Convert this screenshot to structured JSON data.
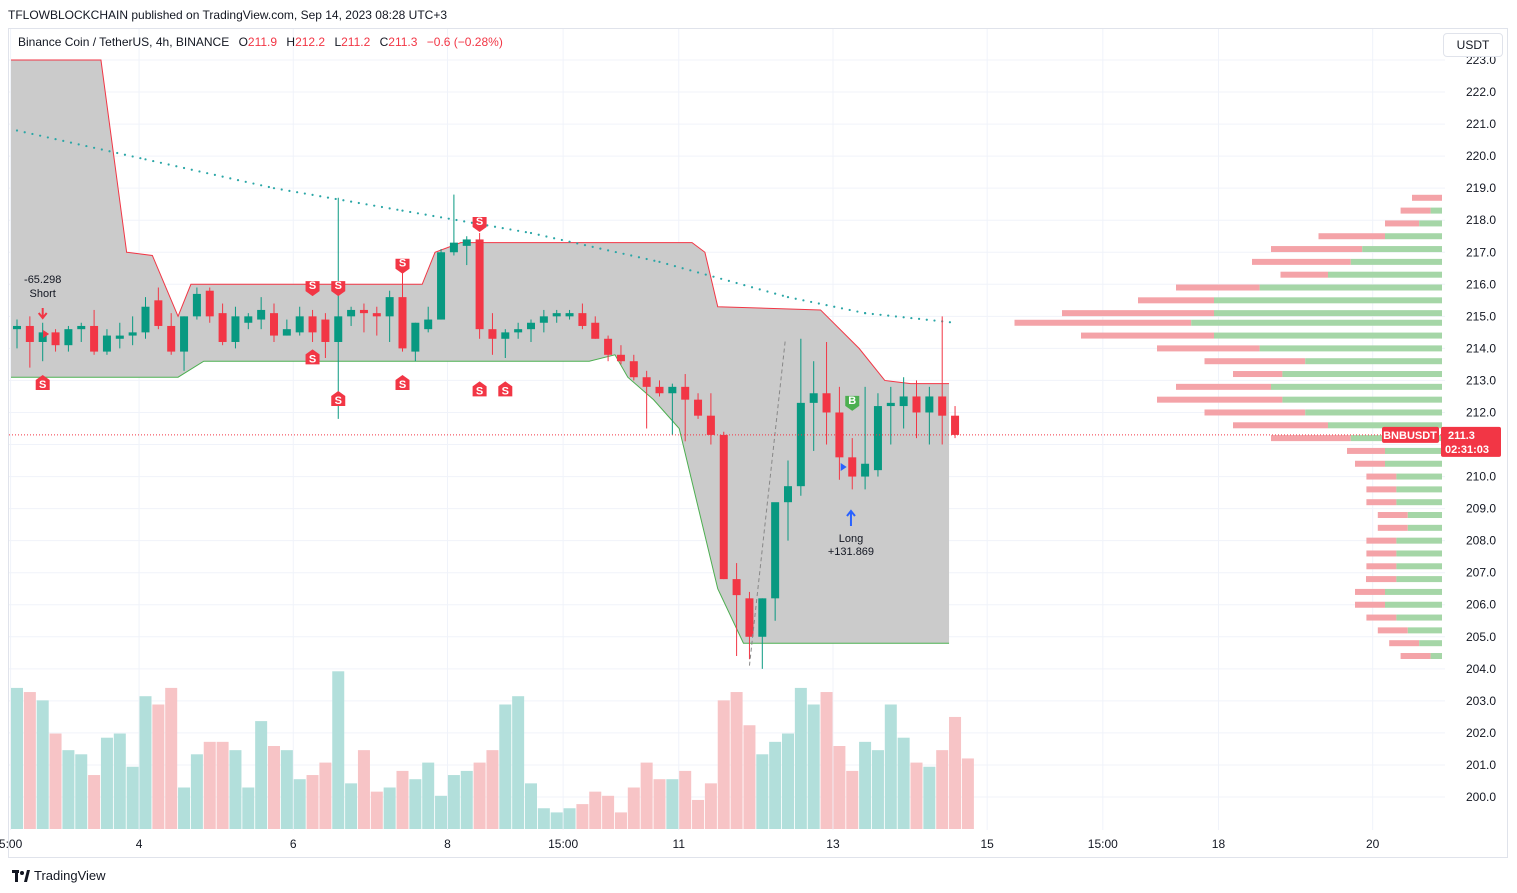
{
  "header": {
    "publisher": "TFLOWBLOCKCHAIN published on TradingView.com, Sep 14, 2023 08:28 UTC+3"
  },
  "legend": {
    "symbol": "Binance Coin / TetherUS, 4h, BINANCE",
    "o_label": "O",
    "o_value": "211.9",
    "h_label": "H",
    "h_value": "212.2",
    "l_label": "L",
    "l_value": "211.2",
    "c_label": "C",
    "c_value": "211.3",
    "change": "−0.6 (−0.28%)"
  },
  "currency": "USDT",
  "price_tag": {
    "symbol": "BNBUSDT",
    "price": "211.3",
    "countdown": "02:31:03"
  },
  "trades": {
    "short_value": "-65.298",
    "short_label": "Short",
    "long_label": "Long",
    "long_value": "+131.869"
  },
  "signals": {
    "sell": "S",
    "buy": "B"
  },
  "footer": {
    "brand": "TradingView"
  },
  "colors": {
    "up": "#089981",
    "down": "#f23645",
    "band": "#c8c8c8",
    "vol_up": "#b2dfdb",
    "vol_down": "#f7c4c6",
    "dots": "#2aa6a6"
  },
  "chart_data": {
    "type": "candlestick",
    "timeframe": "4h",
    "y_ticks": [
      200.0,
      201.0,
      202.0,
      203.0,
      204.0,
      205.0,
      206.0,
      207.0,
      208.0,
      209.0,
      210.0,
      211.0,
      212.0,
      213.0,
      214.0,
      215.0,
      216.0,
      217.0,
      218.0,
      219.0,
      220.0,
      221.0,
      222.0,
      223.0
    ],
    "y_tick_labels": [
      "200.0",
      "201.0",
      "202.0",
      "203.0",
      "204.0",
      "205.0",
      "206.0",
      "207.0",
      "208.0",
      "209.0",
      "210.0",
      "211.0",
      "212.0",
      "213.0",
      "214.0",
      "215.0",
      "216.0",
      "217.0",
      "218.0",
      "219.0",
      "220.0",
      "221.0",
      "222.0",
      "223.0"
    ],
    "ylim": [
      199.0,
      223.2
    ],
    "x_ticks": [
      {
        "i": -0.5,
        "label": "5:00"
      },
      {
        "i": 9.5,
        "label": "4"
      },
      {
        "i": 21.5,
        "label": "6"
      },
      {
        "i": 33.5,
        "label": "8"
      },
      {
        "i": 42.5,
        "label": "15:00"
      },
      {
        "i": 51.5,
        "label": "11"
      },
      {
        "i": 63.5,
        "label": "13"
      },
      {
        "i": 75.5,
        "label": "15"
      },
      {
        "i": 84.5,
        "label": "15:00"
      },
      {
        "i": 93.5,
        "label": "18"
      },
      {
        "i": 105.5,
        "label": "20"
      }
    ],
    "candles": [
      [
        214.6,
        214.9,
        214.0,
        214.7
      ],
      [
        214.7,
        215.0,
        213.4,
        214.2
      ],
      [
        214.2,
        214.8,
        213.6,
        214.5
      ],
      [
        214.5,
        214.6,
        213.9,
        214.1
      ],
      [
        214.1,
        214.7,
        213.9,
        214.6
      ],
      [
        214.6,
        214.8,
        214.2,
        214.7
      ],
      [
        214.7,
        215.2,
        213.8,
        213.9
      ],
      [
        213.9,
        214.6,
        213.8,
        214.4
      ],
      [
        214.3,
        214.8,
        214.0,
        214.4
      ],
      [
        214.4,
        215.0,
        214.1,
        214.5
      ],
      [
        214.5,
        215.6,
        214.3,
        215.3
      ],
      [
        215.5,
        215.9,
        214.6,
        214.7
      ],
      [
        214.7,
        215.1,
        213.8,
        213.9
      ],
      [
        213.9,
        215.0,
        213.3,
        215.0
      ],
      [
        215.0,
        215.9,
        214.9,
        215.7
      ],
      [
        215.8,
        215.9,
        214.8,
        215.0
      ],
      [
        215.1,
        215.4,
        214.1,
        214.2
      ],
      [
        214.2,
        215.3,
        214.0,
        215.0
      ],
      [
        214.8,
        215.1,
        214.6,
        215.0
      ],
      [
        214.9,
        215.6,
        214.6,
        215.2
      ],
      [
        215.1,
        215.4,
        214.2,
        214.4
      ],
      [
        214.4,
        214.9,
        214.4,
        214.6
      ],
      [
        214.5,
        215.3,
        214.4,
        215.0
      ],
      [
        215.0,
        215.2,
        214.2,
        214.5
      ],
      [
        214.9,
        215.1,
        213.7,
        214.2
      ],
      [
        214.2,
        218.7,
        211.8,
        215.0
      ],
      [
        215.0,
        215.3,
        214.7,
        215.2
      ],
      [
        215.2,
        215.4,
        214.5,
        215.1
      ],
      [
        215.1,
        215.3,
        214.4,
        215.0
      ],
      [
        215.0,
        215.8,
        214.2,
        215.6
      ],
      [
        215.6,
        216.4,
        213.9,
        214.0
      ],
      [
        213.9,
        214.8,
        213.6,
        214.8
      ],
      [
        214.6,
        215.3,
        214.5,
        214.9
      ],
      [
        214.9,
        217.1,
        214.9,
        217.0
      ],
      [
        217.0,
        218.8,
        216.9,
        217.3
      ],
      [
        217.2,
        217.5,
        216.6,
        217.4
      ],
      [
        217.4,
        217.6,
        214.3,
        214.6
      ],
      [
        214.6,
        215.1,
        213.8,
        214.3
      ],
      [
        214.3,
        214.6,
        213.7,
        214.5
      ],
      [
        214.5,
        214.8,
        214.3,
        214.6
      ],
      [
        214.6,
        214.9,
        214.2,
        214.8
      ],
      [
        214.8,
        215.2,
        214.5,
        215.0
      ],
      [
        215.0,
        215.2,
        214.8,
        215.1
      ],
      [
        215.0,
        215.2,
        214.9,
        215.1
      ],
      [
        215.1,
        215.4,
        214.6,
        214.7
      ],
      [
        214.8,
        215.0,
        214.3,
        214.3
      ],
      [
        214.3,
        214.4,
        213.6,
        213.8
      ],
      [
        213.8,
        214.1,
        213.5,
        213.6
      ],
      [
        213.6,
        213.8,
        213.0,
        213.1
      ],
      [
        213.1,
        213.3,
        211.5,
        212.8
      ],
      [
        212.8,
        213.0,
        212.5,
        212.6
      ],
      [
        212.6,
        212.9,
        211.3,
        212.8
      ],
      [
        212.8,
        213.2,
        211.1,
        212.4
      ],
      [
        212.4,
        212.6,
        211.8,
        211.9
      ],
      [
        211.9,
        212.6,
        211.0,
        211.3
      ],
      [
        211.3,
        211.4,
        206.8,
        206.8
      ],
      [
        206.8,
        207.3,
        204.4,
        206.3
      ],
      [
        206.2,
        206.4,
        204.3,
        205.0
      ],
      [
        205.0,
        206.2,
        204.0,
        206.2
      ],
      [
        206.2,
        209.0,
        205.5,
        209.2
      ],
      [
        209.2,
        210.5,
        208.0,
        209.7
      ],
      [
        209.7,
        214.3,
        209.4,
        212.3
      ],
      [
        212.3,
        213.6,
        210.8,
        212.6
      ],
      [
        212.6,
        214.2,
        211.0,
        212.0
      ],
      [
        212.0,
        212.8,
        209.9,
        210.6
      ],
      [
        210.6,
        211.2,
        209.6,
        210.0
      ],
      [
        210.0,
        212.8,
        209.6,
        210.4
      ],
      [
        210.2,
        212.6,
        210.0,
        212.2
      ],
      [
        212.2,
        212.8,
        211.0,
        212.3
      ],
      [
        212.2,
        213.1,
        211.5,
        212.5
      ],
      [
        212.5,
        213.0,
        211.2,
        212.0
      ],
      [
        212.0,
        212.8,
        211.0,
        212.5
      ],
      [
        212.5,
        215.0,
        211.0,
        211.9
      ],
      [
        211.9,
        212.2,
        211.2,
        211.3
      ]
    ],
    "volumes": [
      34,
      33,
      31,
      23,
      19,
      18,
      13,
      22,
      23,
      15,
      32,
      30,
      34,
      10,
      18,
      21,
      21,
      19,
      10,
      26,
      20,
      19,
      12,
      13,
      16,
      38,
      11,
      19,
      9,
      10,
      14,
      12,
      16,
      8,
      13,
      14,
      16,
      19,
      30,
      32,
      11,
      5,
      4,
      5,
      6,
      9,
      8,
      4,
      10,
      16,
      12,
      12,
      14,
      7,
      11,
      31,
      33,
      25,
      18,
      21,
      23,
      34,
      30,
      33,
      20,
      14,
      21,
      19,
      30,
      22,
      16,
      15,
      19,
      27,
      17
    ],
    "vwap_dots": [
      {
        "i": 0,
        "y": 220.8
      },
      {
        "i": 10,
        "y": 219.9
      },
      {
        "i": 20,
        "y": 219.0
      },
      {
        "i": 30,
        "y": 218.3
      },
      {
        "i": 40,
        "y": 217.6
      },
      {
        "i": 50,
        "y": 216.7
      },
      {
        "i": 60,
        "y": 215.6
      },
      {
        "i": 66,
        "y": 215.1
      },
      {
        "i": 73,
        "y": 214.8
      }
    ],
    "band_upper": [
      [
        0,
        223.0
      ],
      [
        7,
        223.0
      ],
      [
        9,
        217.0
      ],
      [
        11,
        216.9
      ],
      [
        13,
        215.0
      ],
      [
        14,
        216.0
      ],
      [
        32,
        216.0
      ],
      [
        33,
        217.0
      ],
      [
        35,
        217.3
      ],
      [
        53,
        217.3
      ],
      [
        54,
        217.0
      ],
      [
        55,
        215.3
      ],
      [
        63,
        215.2
      ],
      [
        66,
        214.0
      ],
      [
        68,
        213.0
      ],
      [
        70,
        212.9
      ],
      [
        73,
        212.9
      ]
    ],
    "band_lower": [
      [
        0,
        213.1
      ],
      [
        13,
        213.1
      ],
      [
        15,
        213.6
      ],
      [
        45,
        213.6
      ],
      [
        47,
        213.8
      ],
      [
        48,
        213.1
      ],
      [
        50,
        212.4
      ],
      [
        52,
        211.5
      ],
      [
        55,
        206.5
      ],
      [
        57,
        204.8
      ],
      [
        73,
        204.8
      ]
    ],
    "sell_markers": [
      {
        "i": 2,
        "y": 213.2,
        "pos": "below"
      },
      {
        "i": 23,
        "y": 215.6,
        "pos": "above"
      },
      {
        "i": 25,
        "y": 215.6,
        "pos": "above"
      },
      {
        "i": 23,
        "y": 214.0,
        "pos": "below"
      },
      {
        "i": 25,
        "y": 212.7,
        "pos": "below"
      },
      {
        "i": 30,
        "y": 216.3,
        "pos": "above"
      },
      {
        "i": 30,
        "y": 213.2,
        "pos": "below"
      },
      {
        "i": 36,
        "y": 217.6,
        "pos": "above"
      },
      {
        "i": 36,
        "y": 213.0,
        "pos": "below"
      },
      {
        "i": 38,
        "y": 213.0,
        "pos": "below"
      }
    ],
    "buy_markers": [
      {
        "i": 65,
        "y": 212.3
      }
    ],
    "last_price": 211.3,
    "volume_profile": [
      {
        "p": 218.7,
        "s": 0.01,
        "g": 0.0
      },
      {
        "p": 218.3,
        "s": 0.03,
        "g": 0.01
      },
      {
        "p": 217.9,
        "s": 0.06,
        "g": 0.02
      },
      {
        "p": 217.5,
        "s": 0.13,
        "g": 0.05
      },
      {
        "p": 217.1,
        "s": 0.18,
        "g": 0.07
      },
      {
        "p": 216.7,
        "s": 0.2,
        "g": 0.08
      },
      {
        "p": 216.3,
        "s": 0.17,
        "g": 0.1
      },
      {
        "p": 215.9,
        "s": 0.28,
        "g": 0.16
      },
      {
        "p": 215.5,
        "s": 0.32,
        "g": 0.2
      },
      {
        "p": 215.1,
        "s": 0.4,
        "g": 0.2
      },
      {
        "p": 214.8,
        "s": 0.45,
        "g": 0.22
      },
      {
        "p": 214.4,
        "s": 0.38,
        "g": 0.2
      },
      {
        "p": 214.0,
        "s": 0.3,
        "g": 0.16
      },
      {
        "p": 213.6,
        "s": 0.25,
        "g": 0.12
      },
      {
        "p": 213.2,
        "s": 0.22,
        "g": 0.14
      },
      {
        "p": 212.8,
        "s": 0.28,
        "g": 0.15
      },
      {
        "p": 212.4,
        "s": 0.3,
        "g": 0.14
      },
      {
        "p": 212.0,
        "s": 0.25,
        "g": 0.12
      },
      {
        "p": 211.6,
        "s": 0.22,
        "g": 0.1
      },
      {
        "p": 211.2,
        "s": 0.18,
        "g": 0.08
      },
      {
        "p": 210.8,
        "s": 0.1,
        "g": 0.05
      },
      {
        "p": 210.4,
        "s": 0.08,
        "g": 0.05
      },
      {
        "p": 210.0,
        "s": 0.06,
        "g": 0.04
      },
      {
        "p": 209.6,
        "s": 0.07,
        "g": 0.04
      },
      {
        "p": 209.2,
        "s": 0.06,
        "g": 0.04
      },
      {
        "p": 208.8,
        "s": 0.05,
        "g": 0.03
      },
      {
        "p": 208.4,
        "s": 0.06,
        "g": 0.03
      },
      {
        "p": 208.0,
        "s": 0.07,
        "g": 0.04
      },
      {
        "p": 207.6,
        "s": 0.06,
        "g": 0.04
      },
      {
        "p": 207.2,
        "s": 0.07,
        "g": 0.04
      },
      {
        "p": 206.8,
        "s": 0.08,
        "g": 0.04
      },
      {
        "p": 206.4,
        "s": 0.09,
        "g": 0.05
      },
      {
        "p": 206.0,
        "s": 0.09,
        "g": 0.05
      },
      {
        "p": 205.6,
        "s": 0.07,
        "g": 0.04
      },
      {
        "p": 205.2,
        "s": 0.05,
        "g": 0.03
      },
      {
        "p": 204.8,
        "s": 0.03,
        "g": 0.02
      },
      {
        "p": 204.4,
        "s": 0.02,
        "g": 0.01
      }
    ]
  }
}
